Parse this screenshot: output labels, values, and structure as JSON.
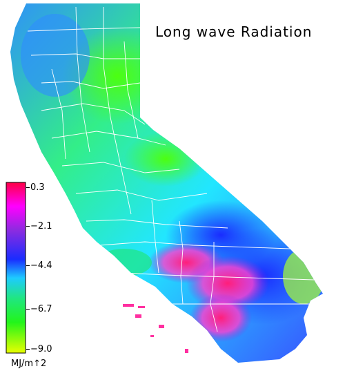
{
  "map": {
    "title": "Long wave Radiation",
    "legend": {
      "ticks": [
        "0.3",
        "−2.1",
        "−4.4",
        "−6.7",
        "−9.0"
      ],
      "units": "MJ/m↑2",
      "colors": [
        "#ff0044",
        "#ff00ff",
        "#8c2be0",
        "#1a2cff",
        "#1ecbff",
        "#20e680",
        "#22f51a",
        "#b8ff00",
        "#e8ff00"
      ]
    },
    "colors": {
      "north_coast": "#3aa7ff",
      "central_valley": "#33ee55",
      "sierra": "#a0ff20",
      "mojave": "#3b3cff",
      "southern_desert": "#ff2fa0",
      "county_lines": "#ffffff"
    }
  }
}
